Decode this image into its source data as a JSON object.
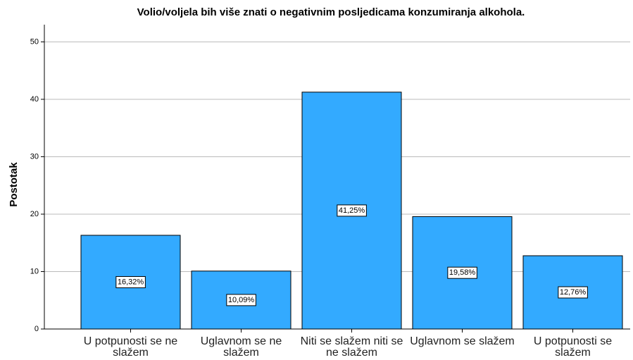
{
  "chart_data": {
    "type": "bar",
    "title": "Volio/voljela bih više znati o negativnim posljedicama konzumiranja alkohola.",
    "ylabel": "Postotak",
    "categories": [
      "U potpunosti se ne slažem",
      "Uglavnom se ne slažem",
      "Niti se slažem niti se ne slažem",
      "Uglavnom se slažem",
      "U potpunosti se slažem"
    ],
    "values": [
      16.32,
      10.09,
      41.25,
      19.58,
      12.76
    ],
    "value_labels": [
      "16,32%",
      "10,09%",
      "41,25%",
      "19,58%",
      "12,76%"
    ],
    "color": "#33aaff",
    "ylim": [
      0,
      53
    ],
    "yticks": [
      0,
      10,
      20,
      30,
      40,
      50
    ],
    "grid": true
  }
}
